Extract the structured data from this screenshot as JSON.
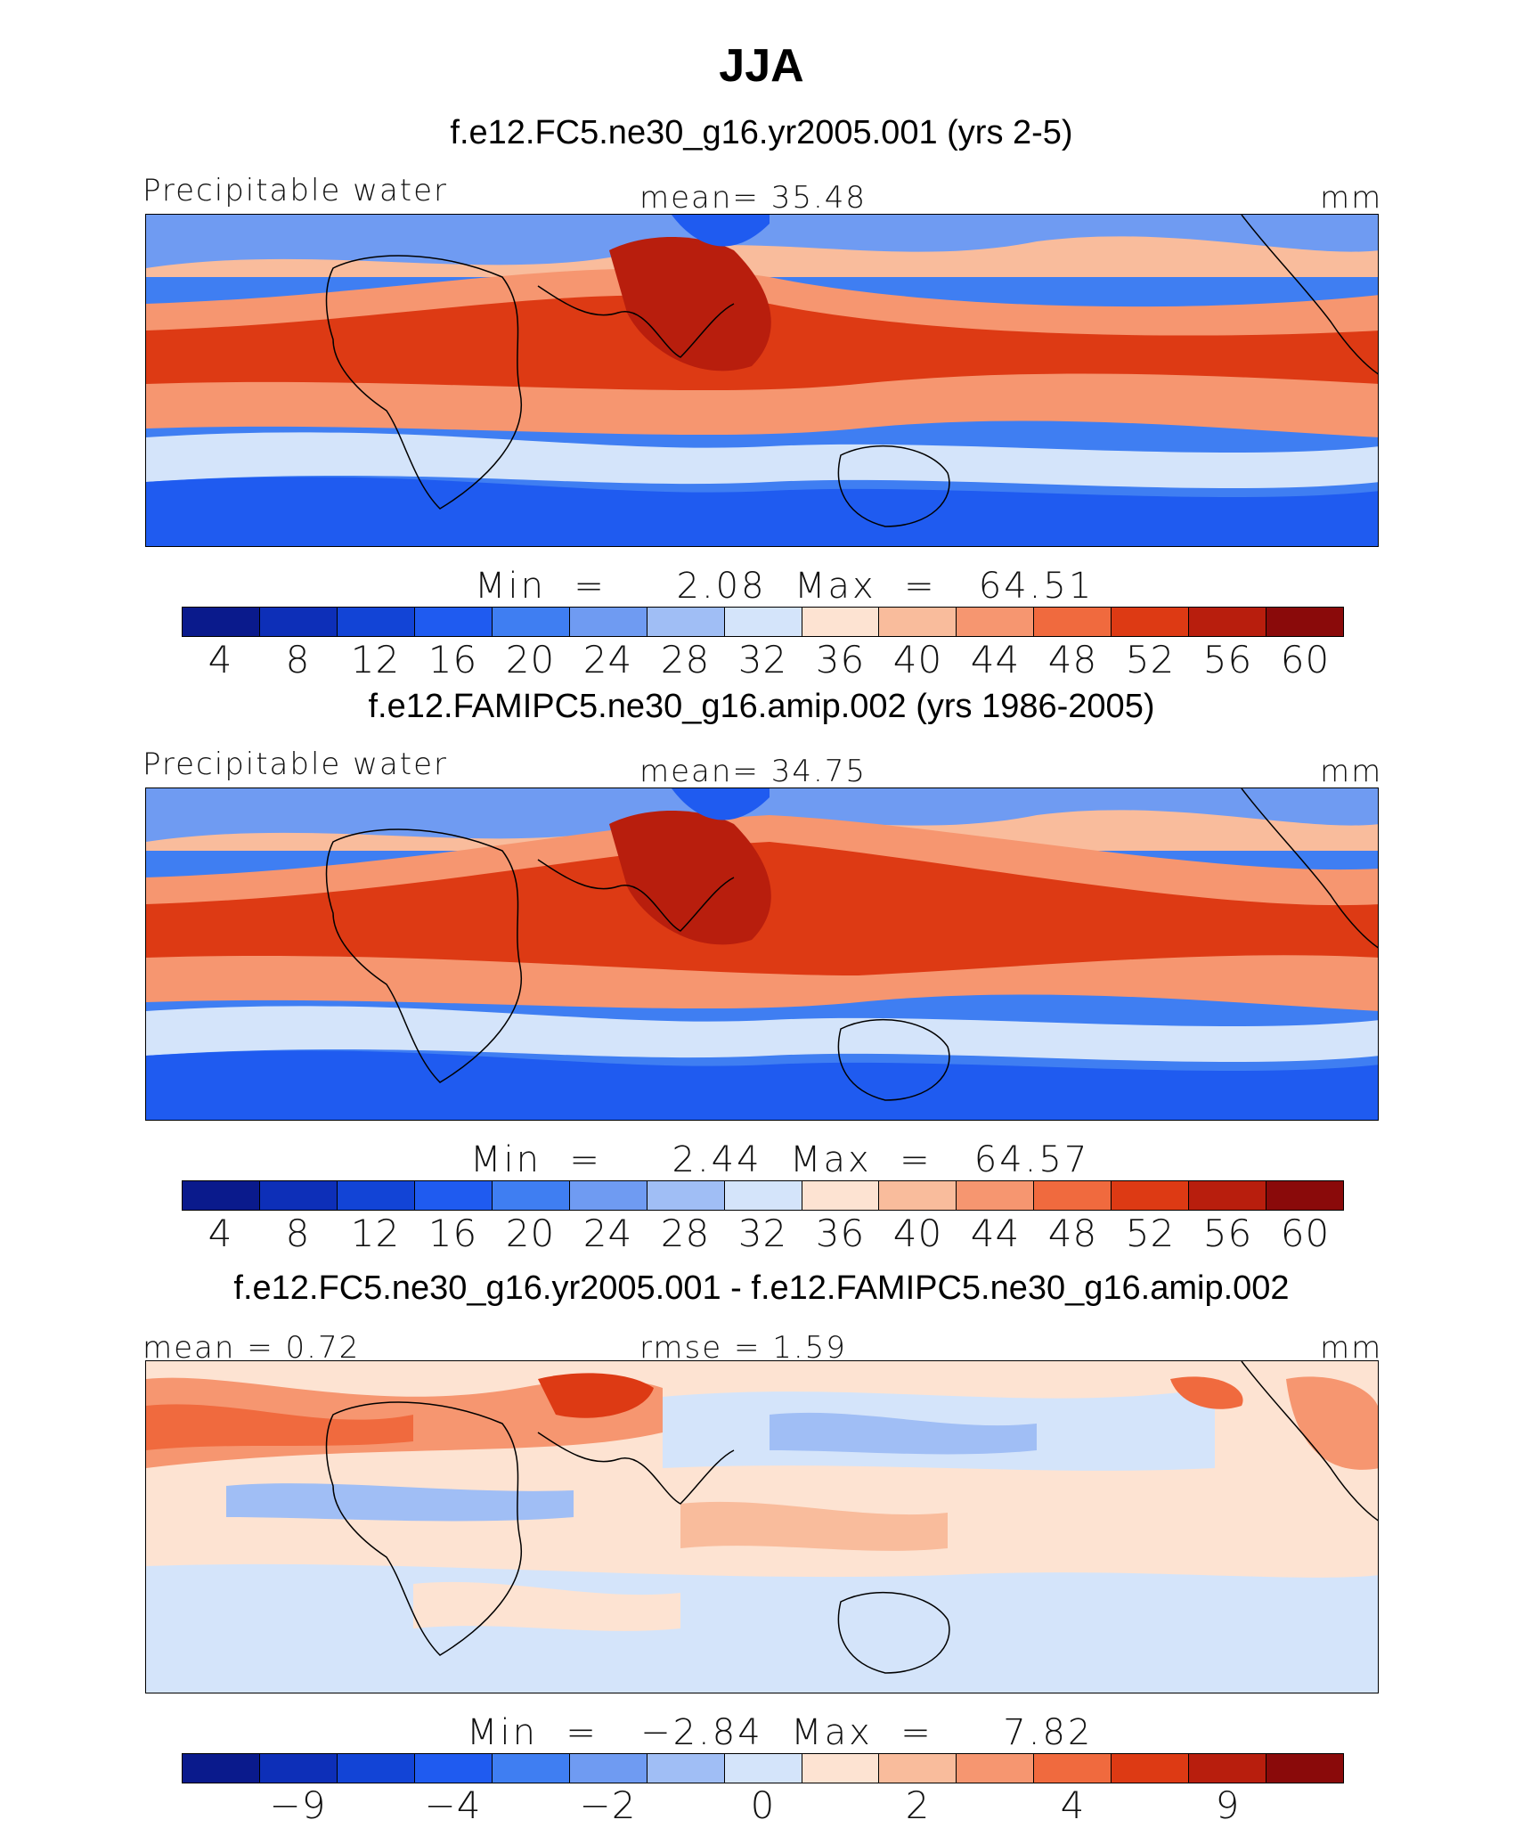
{
  "title": "JJA",
  "panels": [
    {
      "subtitle": "f.e12.FC5.ne30_g16.yr2005.001 (yrs 2-5)",
      "left_label": "Precipitable water",
      "center_label": "mean=   35.48",
      "units": "mm",
      "minmax": "Min  =     2.08  Max  =   64.51",
      "colors": [
        "#0a1a8c",
        "#0d2fb8",
        "#1244d6",
        "#1f5bf0",
        "#3f7ef2",
        "#6f9bf2",
        "#a0bef5",
        "#d4e4fa",
        "#fde3d2",
        "#f9bc9c",
        "#f69670",
        "#f06a3e",
        "#dd3a14",
        "#b81e0d",
        "#8a0a0a"
      ],
      "ticks": [
        "4",
        "8",
        "12",
        "16",
        "20",
        "24",
        "28",
        "32",
        "36",
        "40",
        "44",
        "48",
        "52",
        "56",
        "60"
      ],
      "map_kind": "mean"
    },
    {
      "subtitle": "f.e12.FAMIPC5.ne30_g16.amip.002 (yrs 1986-2005)",
      "left_label": "Precipitable water",
      "center_label": "mean=   34.75",
      "units": "mm",
      "minmax": "Min  =     2.44  Max  =   64.57",
      "colors": [
        "#0a1a8c",
        "#0d2fb8",
        "#1244d6",
        "#1f5bf0",
        "#3f7ef2",
        "#6f9bf2",
        "#a0bef5",
        "#d4e4fa",
        "#fde3d2",
        "#f9bc9c",
        "#f69670",
        "#f06a3e",
        "#dd3a14",
        "#b81e0d",
        "#8a0a0a"
      ],
      "ticks": [
        "4",
        "8",
        "12",
        "16",
        "20",
        "24",
        "28",
        "32",
        "36",
        "40",
        "44",
        "48",
        "52",
        "56",
        "60"
      ],
      "map_kind": "mean"
    },
    {
      "subtitle": "f.e12.FC5.ne30_g16.yr2005.001 - f.e12.FAMIPC5.ne30_g16.amip.002",
      "left_label": "mean =     0.72",
      "center_label": "rmse =     1.59",
      "units": "mm",
      "minmax": "Min  =   −2.84  Max  =     7.82",
      "colors": [
        "#0a1a8c",
        "#0d2fb8",
        "#1244d6",
        "#1f5bf0",
        "#3f7ef2",
        "#6f9bf2",
        "#a0bef5",
        "#d4e4fa",
        "#fde3d2",
        "#f9bc9c",
        "#f69670",
        "#f06a3e",
        "#dd3a14",
        "#b81e0d",
        "#8a0a0a"
      ],
      "ticks": [
        "−9",
        "−4",
        "−2",
        "0",
        "2",
        "4",
        "9"
      ],
      "map_kind": "diff"
    }
  ]
}
